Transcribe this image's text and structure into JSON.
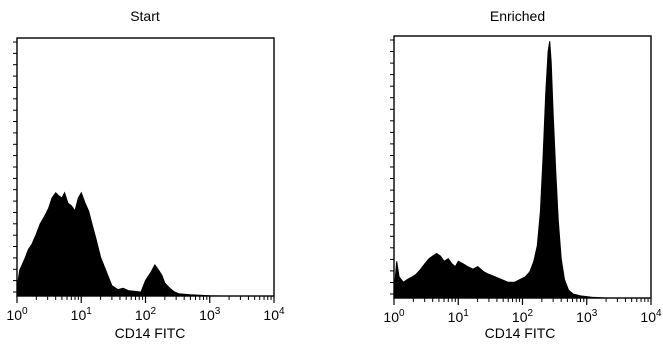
{
  "chart_data": [
    {
      "type": "area",
      "title": "Start",
      "xlabel": "CD14 FITC",
      "ylabel": "",
      "x_scale": "log",
      "xlim": [
        1,
        10000
      ],
      "ylim": [
        0,
        100
      ],
      "x_ticks": [
        {
          "base": "10",
          "exp": "0"
        },
        {
          "base": "10",
          "exp": "1"
        },
        {
          "base": "10",
          "exp": "2"
        },
        {
          "base": "10",
          "exp": "3"
        },
        {
          "base": "10",
          "exp": "4"
        }
      ],
      "grid": false,
      "legend": "none",
      "series": [
        {
          "x": [
            1,
            1.1,
            1.2,
            1.35,
            1.5,
            1.7,
            2,
            2.3,
            2.7,
            3.1,
            3.5,
            4,
            4.4,
            5,
            5.5,
            6.2,
            7,
            8,
            9,
            10,
            11.5,
            13,
            15,
            17,
            20,
            25,
            30,
            37,
            45,
            55,
            70,
            85,
            100,
            120,
            140,
            160,
            180,
            200,
            240,
            280,
            330,
            400,
            500,
            700,
            1000,
            1500,
            2500,
            4000,
            7000,
            10000
          ],
          "y": [
            3,
            10,
            12,
            15,
            18,
            20,
            24,
            28,
            31,
            34,
            38,
            40,
            39,
            38,
            40,
            36,
            35,
            33,
            38,
            40,
            36,
            33,
            27,
            22,
            15,
            9,
            4,
            2.5,
            3,
            2,
            1.8,
            1.5,
            6,
            9,
            12,
            10,
            8,
            5,
            3,
            1.6,
            0.9,
            0.7,
            0.5,
            0.3,
            0.1,
            0,
            0,
            0,
            0,
            0
          ]
        }
      ]
    },
    {
      "type": "area",
      "title": "Enriched",
      "xlabel": "CD14 FITC",
      "ylabel": "",
      "x_scale": "log",
      "xlim": [
        1,
        10000
      ],
      "ylim": [
        0,
        100
      ],
      "x_ticks": [
        {
          "base": "10",
          "exp": "0"
        },
        {
          "base": "10",
          "exp": "1"
        },
        {
          "base": "10",
          "exp": "2"
        },
        {
          "base": "10",
          "exp": "3"
        },
        {
          "base": "10",
          "exp": "4"
        }
      ],
      "grid": false,
      "legend": "none",
      "series": [
        {
          "x": [
            1,
            1.1,
            1.2,
            1.4,
            1.6,
            1.9,
            2.2,
            2.6,
            3,
            3.5,
            4,
            4.6,
            5.3,
            6,
            7,
            8,
            9,
            10,
            12,
            14,
            17,
            20,
            25,
            30,
            38,
            48,
            60,
            75,
            90,
            110,
            130,
            150,
            170,
            190,
            210,
            230,
            250,
            265,
            280,
            300,
            330,
            360,
            400,
            450,
            520,
            620,
            800,
            1200,
            2000,
            4000,
            10000
          ],
          "y": [
            2,
            14,
            8,
            6,
            7,
            8,
            9,
            11,
            13,
            15,
            16,
            17,
            16,
            14,
            15,
            13,
            12,
            14,
            13,
            12,
            11,
            12,
            10,
            9,
            8,
            7,
            6,
            6,
            7,
            8,
            10,
            14,
            20,
            33,
            55,
            78,
            94,
            98,
            90,
            70,
            48,
            30,
            15,
            7,
            3,
            1.5,
            0.8,
            0.3,
            0,
            0,
            0
          ]
        }
      ]
    }
  ]
}
